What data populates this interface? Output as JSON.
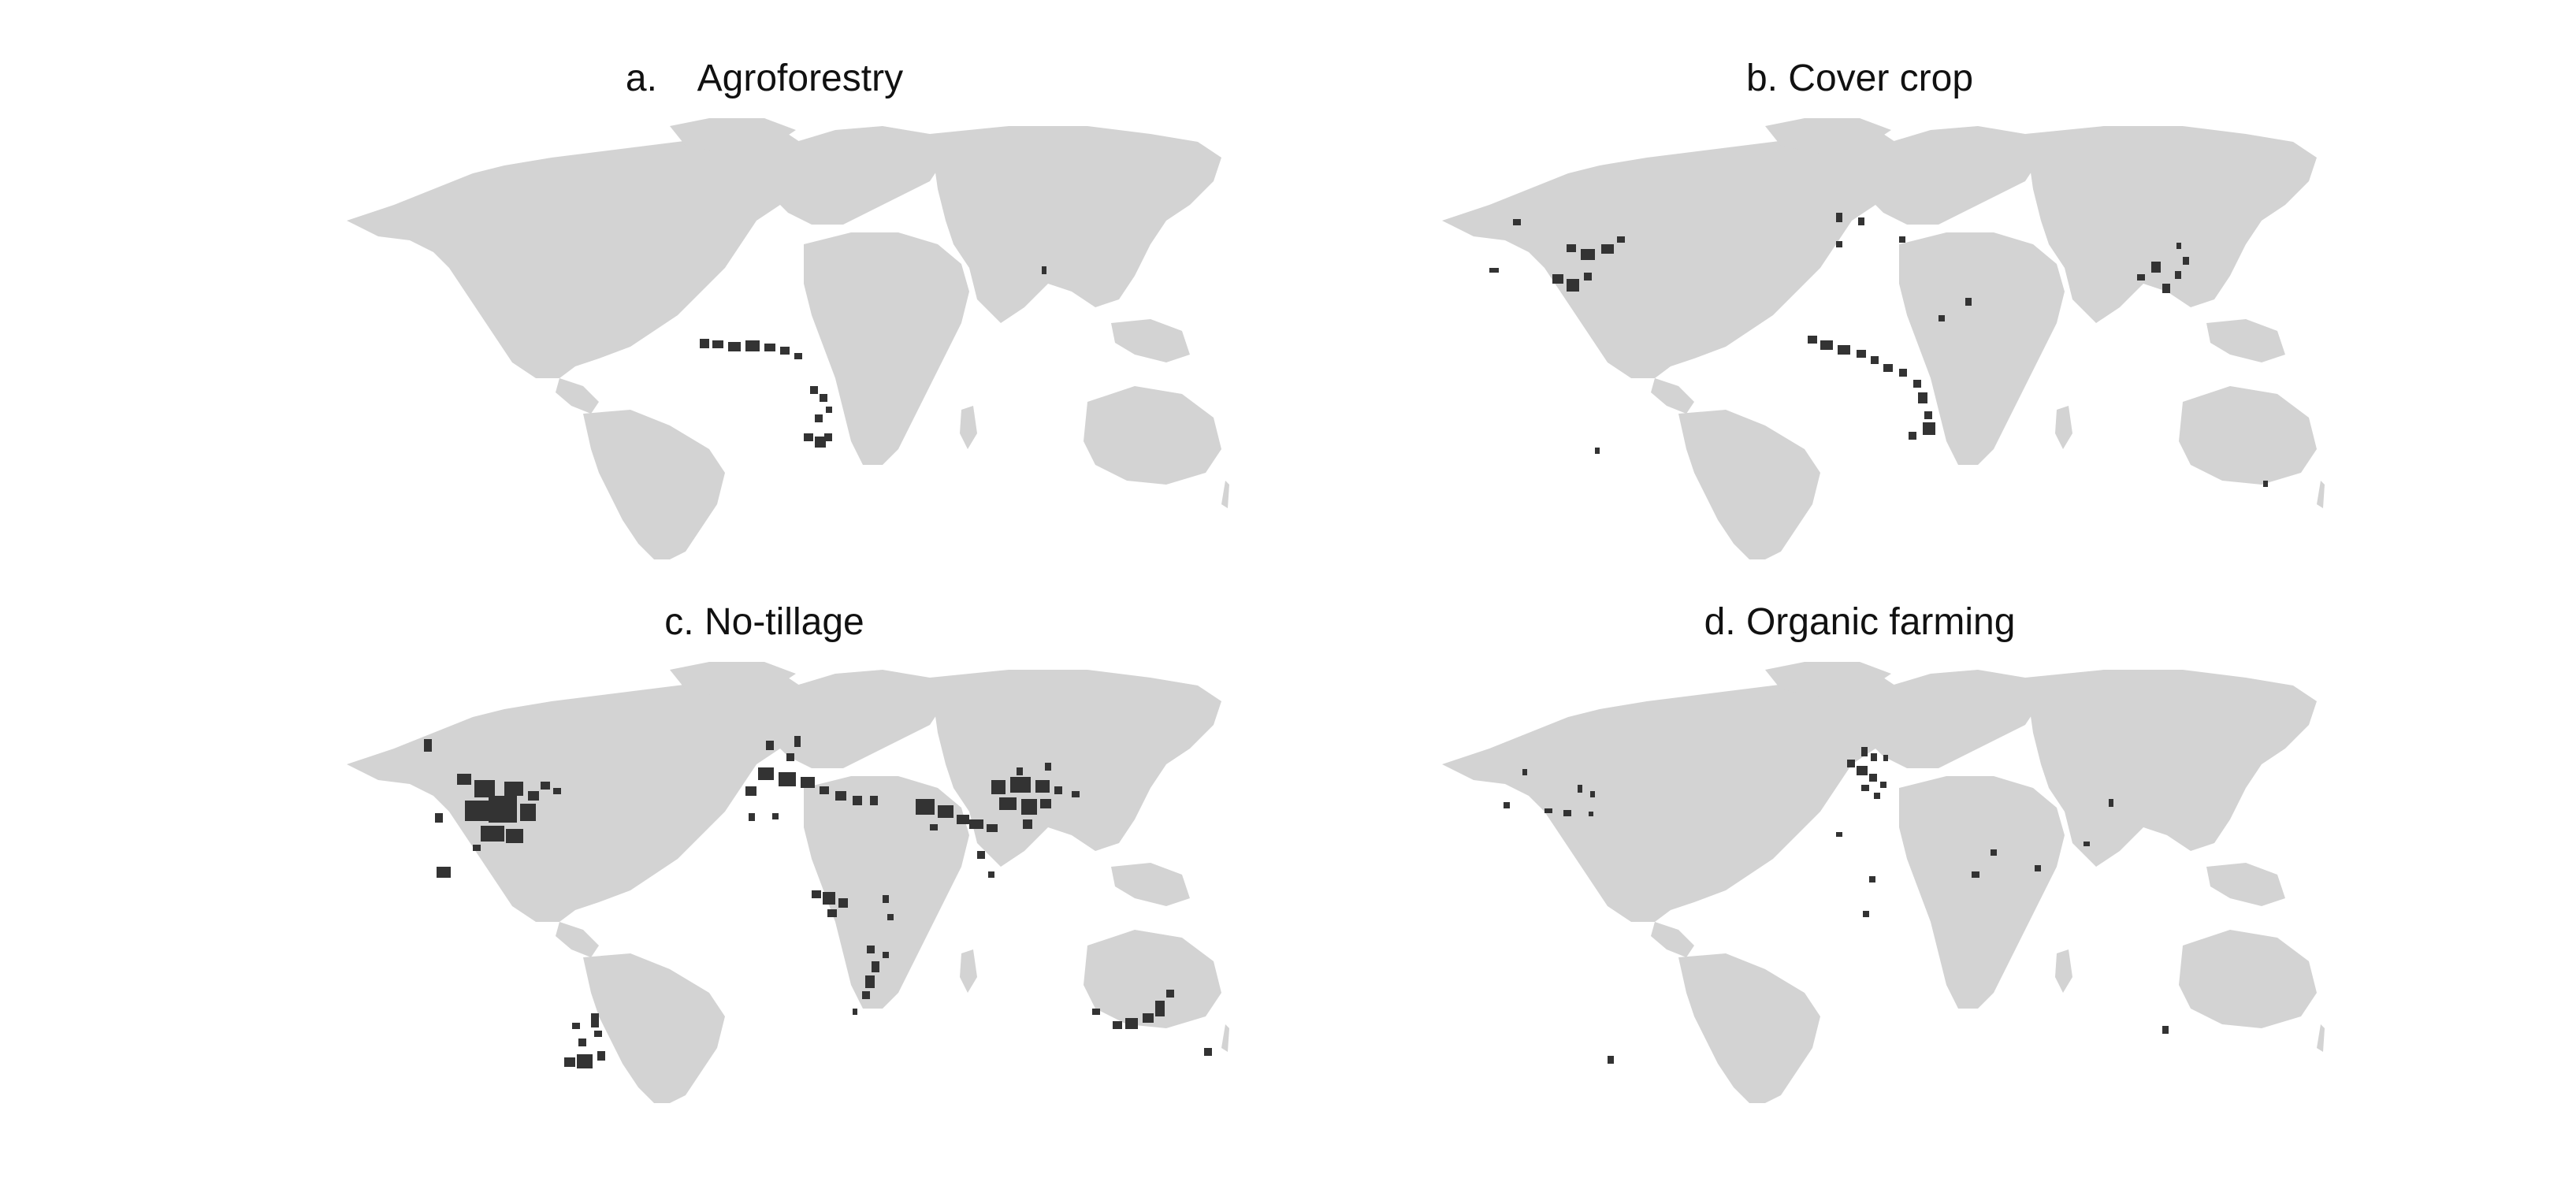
{
  "panels": [
    {
      "id": "agroforestry",
      "title": "a.    Agroforestry",
      "hotspot_regions": [
        "West Africa (Sahel)",
        "East Africa",
        "Southern Africa",
        "Central Asia (point)"
      ]
    },
    {
      "id": "cover-crop",
      "title": "b. Cover crop",
      "hotspot_regions": [
        "US Midwest",
        "US Pacific Northwest",
        "Western Europe",
        "Sahel",
        "East Africa",
        "Southern Africa",
        "East Asia",
        "South America (point)",
        "Australia (point)"
      ]
    },
    {
      "id": "no-tillage",
      "title": "c. No-tillage",
      "hotspot_regions": [
        "North American Great Plains",
        "Canadian Prairies",
        "Western Europe",
        "Eastern Europe",
        "North Africa",
        "Middle East",
        "South Asia",
        "East Asia",
        "Central Africa",
        "Southern Africa",
        "Argentina / Uruguay",
        "Australia"
      ]
    },
    {
      "id": "organic-farming",
      "title": "d. Organic farming",
      "hotspot_regions": [
        "US West",
        "US Midwest",
        "Central Europe",
        "West Africa",
        "South Asia",
        "East Asia",
        "Argentina",
        "Australia"
      ]
    }
  ],
  "colors": {
    "land": "#d3d3d3",
    "hotspot": "#333333",
    "background": "#ffffff",
    "title": "#111111"
  }
}
